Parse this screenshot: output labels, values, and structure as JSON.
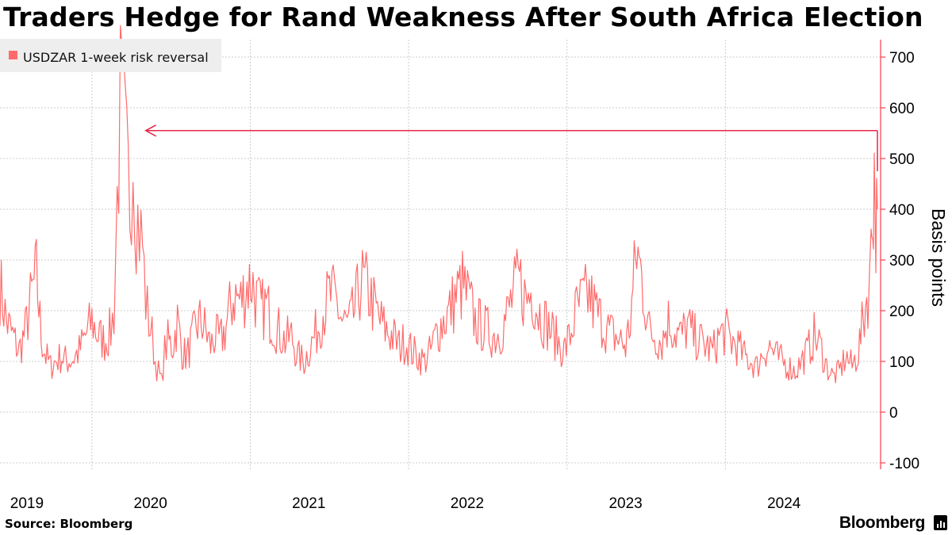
{
  "title": "Traders Hedge for Rand Weakness After South Africa Election",
  "source": "Source: Bloomberg",
  "brand": "Bloomberg",
  "colors": {
    "series": "#ff6b6b",
    "arrow": "#e8254a",
    "axis": "#ff3b4e",
    "grid": "#cccccc"
  },
  "chart_data": {
    "type": "line",
    "title": "Traders Hedge for Rand Weakness After South Africa Election",
    "ylabel": "Basis points",
    "xlabel": "",
    "ylim": [
      -100,
      700
    ],
    "xlim": [
      2018.88,
      2024.44
    ],
    "yticks": [
      -100,
      0,
      100,
      200,
      300,
      400,
      500,
      600,
      700
    ],
    "xticks": [
      {
        "label": "2019",
        "pos": 2019.05
      },
      {
        "label": "2020",
        "pos": 2019.83
      },
      {
        "label": "2021",
        "pos": 2020.83
      },
      {
        "label": "2022",
        "pos": 2021.83
      },
      {
        "label": "2023",
        "pos": 2022.83
      },
      {
        "label": "2024",
        "pos": 2023.83
      }
    ],
    "gridlines_x": [
      2019.46,
      2020.46,
      2021.46,
      2022.46,
      2023.46
    ],
    "grid": true,
    "legend": {
      "position": "top-left",
      "entries": [
        "USDZAR 1-week risk reversal"
      ]
    },
    "annotation": {
      "type": "arrow",
      "from": {
        "x": 2024.42,
        "y": 555
      },
      "to": {
        "x": 2019.8,
        "y": 555
      }
    },
    "series": [
      {
        "name": "USDZAR 1-week risk reversal",
        "x": [
          2018.88,
          2018.92,
          2018.96,
          2019.0,
          2019.04,
          2019.08,
          2019.11,
          2019.14,
          2019.17,
          2019.2,
          2019.23,
          2019.27,
          2019.3,
          2019.34,
          2019.38,
          2019.42,
          2019.46,
          2019.5,
          2019.54,
          2019.58,
          2019.6,
          2019.62,
          2019.64,
          2019.66,
          2019.68,
          2019.7,
          2019.72,
          2019.74,
          2019.76,
          2019.78,
          2019.8,
          2019.82,
          2019.84,
          2019.86,
          2019.88,
          2019.9,
          2019.92,
          2019.94,
          2019.97,
          2020.0,
          2020.03,
          2020.06,
          2020.09,
          2020.12,
          2020.15,
          2020.18,
          2020.21,
          2020.24,
          2020.27,
          2020.3,
          2020.33,
          2020.36,
          2020.4,
          2020.44,
          2020.47,
          2020.5,
          2020.53,
          2020.56,
          2020.6,
          2020.64,
          2020.68,
          2020.72,
          2020.76,
          2020.8,
          2020.84,
          2020.88,
          2020.92,
          2020.96,
          2021.0,
          2021.04,
          2021.08,
          2021.12,
          2021.16,
          2021.2,
          2021.24,
          2021.28,
          2021.32,
          2021.36,
          2021.4,
          2021.44,
          2021.48,
          2021.52,
          2021.56,
          2021.6,
          2021.64,
          2021.68,
          2021.72,
          2021.76,
          2021.8,
          2021.84,
          2021.88,
          2021.92,
          2021.96,
          2022.0,
          2022.04,
          2022.08,
          2022.12,
          2022.16,
          2022.2,
          2022.24,
          2022.28,
          2022.32,
          2022.36,
          2022.4,
          2022.44,
          2022.48,
          2022.52,
          2022.56,
          2022.6,
          2022.64,
          2022.68,
          2022.72,
          2022.76,
          2022.8,
          2022.83,
          2022.86,
          2022.9,
          2022.94,
          2022.98,
          2023.02,
          2023.06,
          2023.1,
          2023.14,
          2023.18,
          2023.22,
          2023.26,
          2023.3,
          2023.34,
          2023.38,
          2023.42,
          2023.46,
          2023.5,
          2023.54,
          2023.58,
          2023.62,
          2023.66,
          2023.7,
          2023.74,
          2023.78,
          2023.82,
          2023.86,
          2023.9,
          2023.94,
          2023.98,
          2024.02,
          2024.06,
          2024.1,
          2024.14,
          2024.18,
          2024.22,
          2024.26,
          2024.3,
          2024.33,
          2024.36,
          2024.38,
          2024.39,
          2024.4,
          2024.41,
          2024.42
        ],
        "values": [
          250,
          180,
          150,
          120,
          160,
          230,
          270,
          150,
          110,
          90,
          100,
          110,
          100,
          105,
          120,
          150,
          180,
          150,
          140,
          160,
          200,
          420,
          600,
          560,
          480,
          420,
          540,
          400,
          360,
          330,
          220,
          180,
          150,
          100,
          80,
          60,
          120,
          140,
          130,
          180,
          120,
          110,
          140,
          170,
          180,
          160,
          130,
          150,
          140,
          160,
          200,
          230,
          220,
          250,
          260,
          220,
          200,
          210,
          180,
          160,
          140,
          150,
          110,
          100,
          130,
          160,
          200,
          230,
          220,
          180,
          170,
          200,
          260,
          240,
          210,
          180,
          160,
          150,
          130,
          140,
          120,
          110,
          100,
          120,
          160,
          180,
          200,
          230,
          250,
          220,
          180,
          170,
          160,
          150,
          160,
          190,
          230,
          260,
          220,
          240,
          200,
          180,
          160,
          140,
          120,
          150,
          200,
          220,
          230,
          200,
          180,
          160,
          150,
          140,
          130,
          180,
          320,
          250,
          160,
          150,
          140,
          180,
          160,
          150,
          170,
          150,
          140,
          130,
          120,
          150,
          160,
          140,
          130,
          110,
          100,
          90,
          120,
          130,
          110,
          100,
          90,
          80,
          100,
          120,
          150,
          130,
          90,
          70,
          80,
          110,
          90,
          120,
          180,
          240,
          300,
          420,
          470,
          360,
          400
        ]
      }
    ]
  }
}
